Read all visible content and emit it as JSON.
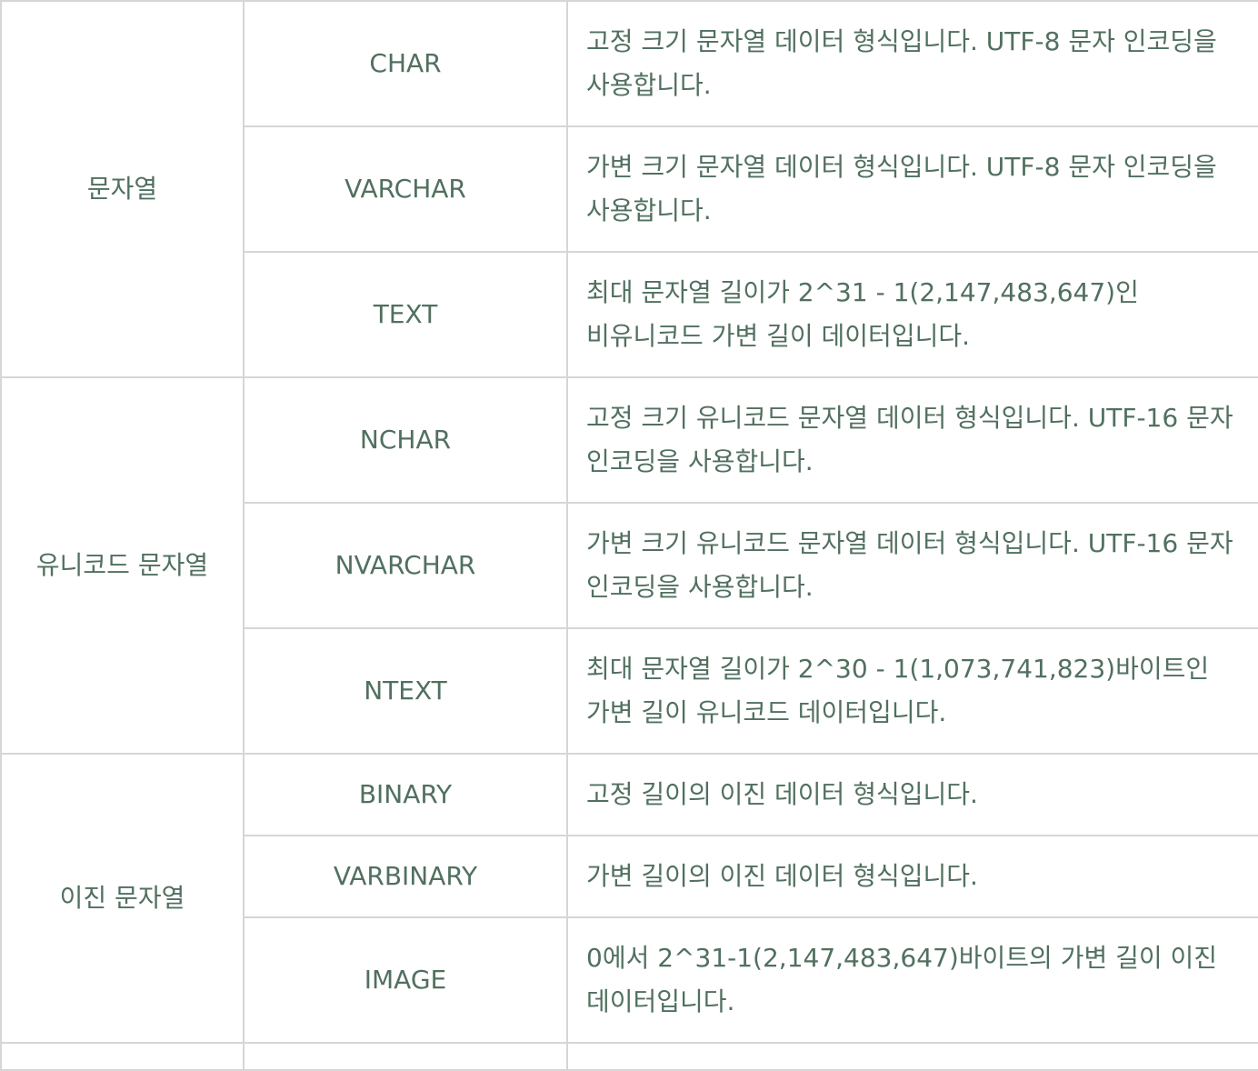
{
  "groups": [
    {
      "category": "문자열",
      "rows": [
        {
          "type": "CHAR",
          "desc": "고정 크기 문자열 데이터 형식입니다. UTF-8 문자 인코딩을 사용합니다."
        },
        {
          "type": "VARCHAR",
          "desc": "가변 크기 문자열 데이터 형식입니다. UTF-8 문자 인코딩을 사용합니다."
        },
        {
          "type": "TEXT",
          "desc": "최대 문자열 길이가 2^31 - 1(2,147,483,647)인 비유니코드 가변 길이 데이터입니다."
        }
      ]
    },
    {
      "category": "유니코드 문자열",
      "rows": [
        {
          "type": "NCHAR",
          "desc": "고정 크기 유니코드 문자열 데이터 형식입니다. UTF-16 문자 인코딩을 사용합니다."
        },
        {
          "type": "NVARCHAR",
          "desc": "가변 크기 유니코드 문자열 데이터 형식입니다. UTF-16 문자 인코딩을 사용합니다."
        },
        {
          "type": "NTEXT",
          "desc": "최대 문자열 길이가 2^30 - 1(1,073,741,823)바이트인 가변 길이 유니코드 데이터입니다."
        }
      ]
    },
    {
      "category": "이진 문자열",
      "rows": [
        {
          "type": "BINARY",
          "desc": "고정 길이의 이진 데이터 형식입니다."
        },
        {
          "type": "VARBINARY",
          "desc": "가변 길이의 이진 데이터 형식입니다."
        },
        {
          "type": "IMAGE",
          "desc": "0에서 2^31-1(2,147,483,647)바이트의 가변 길이 이진 데이터입니다."
        }
      ]
    }
  ],
  "colors": {
    "text": "#51705f",
    "border": "#d6d6d6"
  }
}
